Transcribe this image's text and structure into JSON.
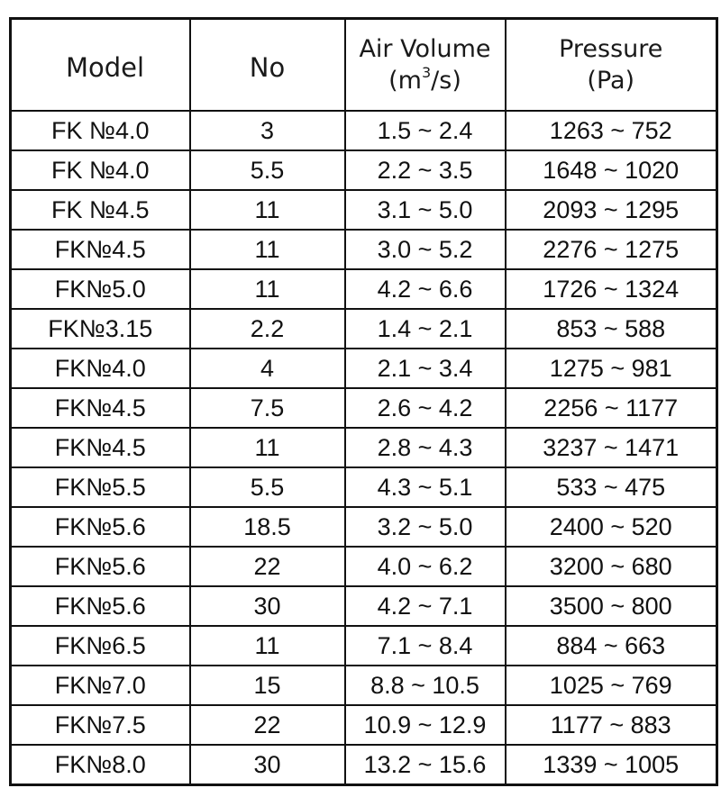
{
  "table": {
    "headers": {
      "model": "Model",
      "no": "No",
      "air_volume": {
        "line1": "Air Volume",
        "unit_prefix": "(m",
        "unit_sup": "3",
        "unit_suffix": "/s)"
      },
      "pressure": {
        "line1": "Pressure",
        "line2": "(Pa)"
      }
    },
    "rows": [
      {
        "model": "FK №4.0",
        "no": "3",
        "air_volume": "1.5 ~ 2.4",
        "pressure": "1263 ~ 752"
      },
      {
        "model": "FK №4.0",
        "no": "5.5",
        "air_volume": "2.2 ~ 3.5",
        "pressure": "1648 ~ 1020"
      },
      {
        "model": "FK №4.5",
        "no": "11",
        "air_volume": "3.1 ~ 5.0",
        "pressure": "2093 ~ 1295"
      },
      {
        "model": "FK№4.5",
        "no": "11",
        "air_volume": "3.0 ~ 5.2",
        "pressure": "2276 ~ 1275"
      },
      {
        "model": "FK№5.0",
        "no": "11",
        "air_volume": "4.2 ~ 6.6",
        "pressure": "1726 ~ 1324"
      },
      {
        "model": "FK№3.15",
        "no": "2.2",
        "air_volume": "1.4 ~ 2.1",
        "pressure": "853 ~ 588"
      },
      {
        "model": "FK№4.0",
        "no": "4",
        "air_volume": "2.1 ~ 3.4",
        "pressure": "1275 ~ 981"
      },
      {
        "model": "FK№4.5",
        "no": "7.5",
        "air_volume": "2.6 ~ 4.2",
        "pressure": "2256 ~ 1177"
      },
      {
        "model": "FK№4.5",
        "no": "11",
        "air_volume": "2.8 ~ 4.3",
        "pressure": "3237 ~ 1471"
      },
      {
        "model": "FK№5.5",
        "no": "5.5",
        "air_volume": "4.3 ~ 5.1",
        "pressure": "533 ~ 475"
      },
      {
        "model": "FK№5.6",
        "no": "18.5",
        "air_volume": "3.2 ~ 5.0",
        "pressure": "2400 ~ 520"
      },
      {
        "model": "FK№5.6",
        "no": "22",
        "air_volume": "4.0 ~ 6.2",
        "pressure": "3200 ~ 680"
      },
      {
        "model": "FK№5.6",
        "no": "30",
        "air_volume": "4.2 ~ 7.1",
        "pressure": "3500 ~ 800"
      },
      {
        "model": "FK№6.5",
        "no": "11",
        "air_volume": "7.1 ~ 8.4",
        "pressure": "884 ~ 663"
      },
      {
        "model": "FK№7.0",
        "no": "15",
        "air_volume": "8.8 ~ 10.5",
        "pressure": "1025 ~ 769"
      },
      {
        "model": "FK№7.5",
        "no": "22",
        "air_volume": "10.9 ~ 12.9",
        "pressure": "1177 ~ 883"
      },
      {
        "model": "FK№8.0",
        "no": "30",
        "air_volume": "13.2 ~ 15.6",
        "pressure": "1339 ~ 1005"
      }
    ]
  }
}
